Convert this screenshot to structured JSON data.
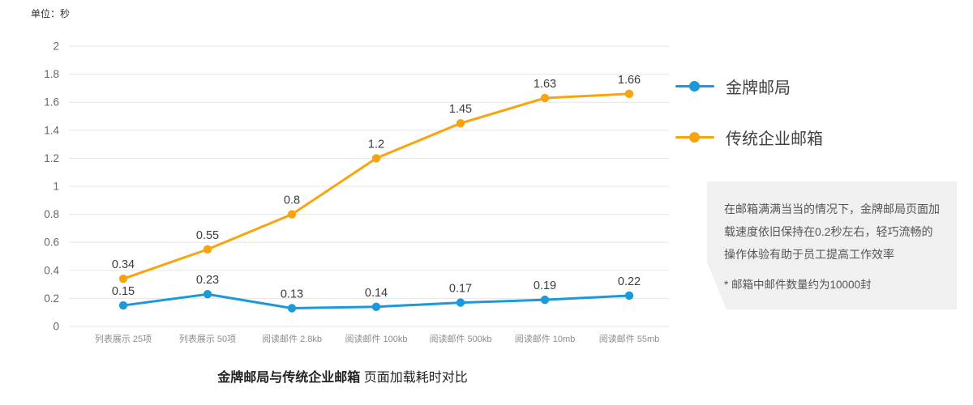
{
  "unit_label": "单位：秒",
  "legend": [
    {
      "label": "金牌邮局",
      "color": "#1b99d8"
    },
    {
      "label": "传统企业邮箱",
      "color": "#f8a40e"
    }
  ],
  "note": {
    "text": "在邮箱满满当当的情况下，金牌邮局页面加载速度依旧保持在0.2秒左右，轻巧流畅的操作体验有助于员工提高工作效率",
    "footnote": "* 邮箱中邮件数量约为10000封"
  },
  "caption": {
    "bold": "金牌邮局与传统企业邮箱",
    "rest": " 页面加载耗时对比"
  },
  "colors": {
    "grid": "#e6e6e6",
    "axis_text": "#8c8c8c",
    "tick_text": "#666666",
    "data_label": "#3c3c3c",
    "note_bg": "#f0f0f0"
  },
  "chart_data": {
    "type": "line",
    "title": "金牌邮局与传统企业邮箱 页面加载耗时对比",
    "unit": "秒",
    "categories": [
      "列表展示 25项",
      "列表展示 50项",
      "阅读邮件 2.8kb",
      "阅读邮件 100kb",
      "阅读邮件 500kb",
      "阅读邮件 10mb",
      "阅读邮件 55mb"
    ],
    "series": [
      {
        "name": "金牌邮局",
        "color": "#1b99d8",
        "values": [
          0.15,
          0.23,
          0.13,
          0.14,
          0.17,
          0.19,
          0.22
        ]
      },
      {
        "name": "传统企业邮箱",
        "color": "#f8a40e",
        "values": [
          0.34,
          0.55,
          0.8,
          1.2,
          1.45,
          1.63,
          1.66
        ]
      }
    ],
    "ylim": [
      0,
      2
    ],
    "y_ticks": [
      "0",
      "0.2",
      "0.4",
      "0.6",
      "0.8",
      "1",
      "1.2",
      "1.4",
      "1.6",
      "1.8",
      "2"
    ],
    "grid": true,
    "legend_position": "right"
  }
}
